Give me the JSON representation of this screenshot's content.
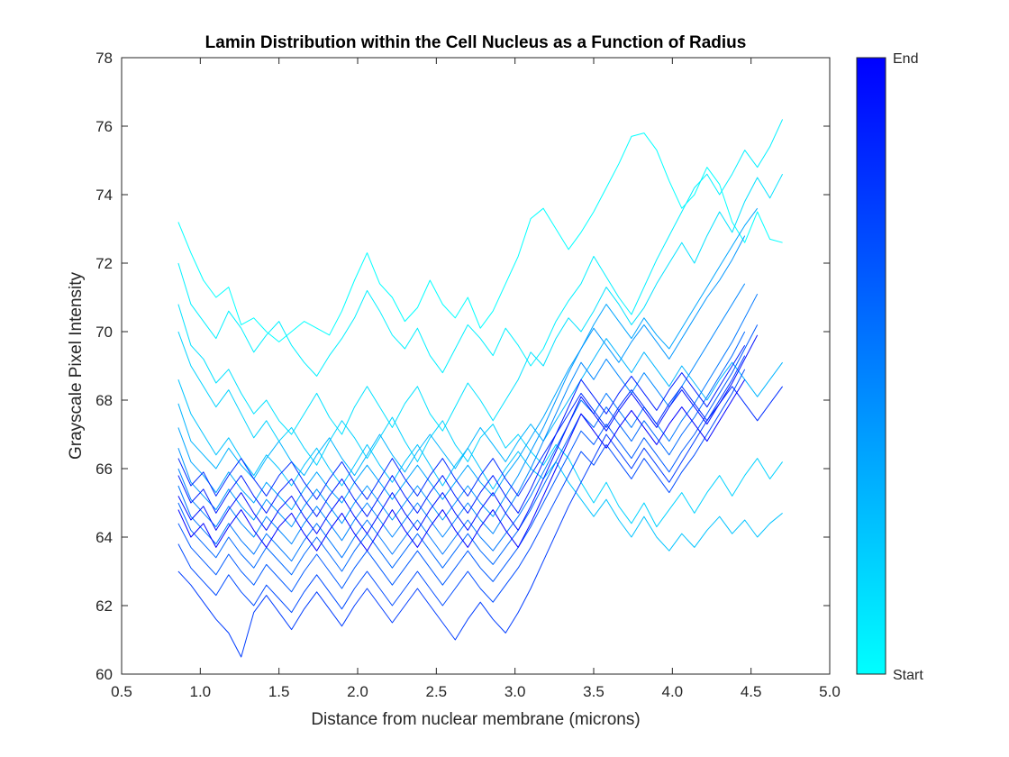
{
  "chart_data": {
    "type": "line",
    "title": "Lamin Distribution within the Cell Nucleus as a Function of Radius",
    "xlabel": "Distance from nuclear membrane (microns)",
    "ylabel": "Grayscale Pixel Intensity",
    "xlim": [
      0.5,
      5.0
    ],
    "ylim": [
      60,
      78
    ],
    "xticks": [
      "0.5",
      "1.0",
      "1.5",
      "2.0",
      "2.5",
      "3.0",
      "3.5",
      "4.0",
      "4.5",
      "5.0"
    ],
    "yticks": [
      "60",
      "62",
      "64",
      "66",
      "68",
      "70",
      "72",
      "74",
      "76",
      "78"
    ],
    "grid": false,
    "colorbar": {
      "start_label": "Start",
      "end_label": "End",
      "start_color": "#00FFFF",
      "end_color": "#0000FF"
    },
    "x": [
      0.86,
      0.94,
      1.02,
      1.1,
      1.18,
      1.26,
      1.34,
      1.42,
      1.5,
      1.58,
      1.66,
      1.74,
      1.82,
      1.9,
      1.98,
      2.06,
      2.14,
      2.22,
      2.3,
      2.38,
      2.46,
      2.54,
      2.62,
      2.7,
      2.78,
      2.86,
      2.94,
      3.02,
      3.1,
      3.18,
      3.26,
      3.34,
      3.42,
      3.5,
      3.58,
      3.66,
      3.74,
      3.82,
      3.9,
      3.98,
      4.06,
      4.14,
      4.22,
      4.3,
      4.38,
      4.46,
      4.54,
      4.62,
      4.7
    ],
    "series": [
      {
        "values": [
          73.2,
          72.3,
          71.5,
          71.0,
          71.3,
          70.2,
          70.4,
          70.0,
          69.7,
          70.0,
          70.3,
          70.1,
          69.9,
          70.6,
          71.5,
          72.3,
          71.4,
          71.0,
          70.3,
          70.7,
          71.5,
          70.8,
          70.4,
          71.0,
          70.1,
          70.6,
          71.4,
          72.2,
          73.3,
          73.6,
          73.0,
          72.4,
          72.9,
          73.5,
          74.2,
          74.9,
          75.7,
          75.8,
          75.3,
          74.4,
          73.6,
          74.0,
          74.8,
          74.3,
          73.2,
          72.6,
          73.5,
          72.7,
          72.6
        ]
      },
      {
        "values": [
          72.0,
          70.8,
          70.3,
          69.8,
          70.6,
          70.1,
          69.4,
          69.9,
          70.3,
          69.6,
          69.1,
          68.7,
          69.3,
          69.8,
          70.4,
          71.2,
          70.6,
          69.9,
          69.5,
          70.1,
          69.3,
          68.8,
          69.5,
          70.2,
          69.8,
          69.3,
          70.1,
          69.6,
          69.0,
          69.5,
          70.3,
          70.9,
          71.4,
          72.2,
          71.6,
          71.0,
          70.5,
          71.3,
          72.1,
          72.8,
          73.5,
          74.2,
          74.6,
          74.0,
          74.6,
          75.3,
          74.8,
          75.4,
          76.2
        ]
      },
      {
        "values": [
          70.8,
          69.6,
          69.2,
          68.5,
          68.9,
          68.2,
          67.6,
          68.0,
          67.4,
          67.0,
          67.6,
          68.2,
          67.5,
          67.0,
          67.8,
          68.4,
          67.8,
          67.2,
          67.9,
          68.4,
          67.6,
          67.1,
          67.8,
          68.5,
          68.0,
          67.4,
          68.0,
          68.6,
          69.4,
          69.0,
          69.8,
          70.4,
          70.0,
          70.6,
          71.3,
          70.8,
          70.2,
          70.7,
          71.4,
          72.0,
          72.6,
          72.0,
          72.8,
          73.5,
          72.9,
          73.8,
          74.5,
          73.9,
          74.6
        ]
      },
      {
        "values": [
          70.0,
          69.0,
          68.4,
          67.8,
          68.3,
          67.6,
          66.9,
          67.4,
          66.8,
          67.2,
          66.6,
          66.1,
          66.8,
          67.4,
          66.9,
          66.3,
          66.9,
          67.5,
          66.8,
          66.2,
          66.9,
          67.4,
          66.7,
          66.2,
          66.9,
          67.3,
          66.6,
          67.0,
          66.5,
          66.1,
          66.7,
          66.3,
          65.6,
          65.0,
          65.6,
          64.9,
          64.4,
          65.0,
          64.3,
          64.8,
          65.3,
          64.7,
          65.3,
          65.8,
          65.2,
          65.8,
          66.3,
          65.7,
          66.2
        ]
      },
      {
        "values": [
          68.6,
          67.6,
          67.0,
          66.4,
          66.9,
          66.3,
          65.8,
          66.4,
          66.0,
          65.5,
          66.1,
          66.6,
          66.0,
          65.5,
          66.1,
          66.7,
          66.1,
          65.6,
          66.2,
          66.7,
          66.1,
          65.5,
          66.1,
          66.6,
          66.0,
          65.4,
          66.0,
          66.5,
          66.0,
          65.7,
          66.2,
          65.6,
          65.1,
          64.6,
          65.1,
          64.5,
          64.0,
          64.6,
          64.0,
          63.6,
          64.1,
          63.7,
          64.2,
          64.6,
          64.1,
          64.5,
          64.0,
          64.4,
          64.7
        ]
      },
      {
        "values": [
          67.9,
          66.8,
          66.4,
          66.0,
          66.6,
          66.1,
          65.7,
          66.3,
          66.8,
          66.2,
          65.8,
          66.4,
          66.9,
          66.3,
          65.8,
          66.4,
          67.0,
          66.4,
          65.9,
          66.5,
          67.0,
          66.5,
          66.0,
          66.6,
          67.2,
          66.7,
          66.2,
          66.8,
          67.3,
          66.8,
          67.4,
          68.0,
          68.6,
          69.2,
          69.8,
          69.3,
          68.8,
          69.4,
          68.9,
          68.4,
          69.0,
          68.5,
          68.0,
          68.6,
          69.1,
          68.6,
          68.1,
          68.6,
          69.1
        ]
      },
      {
        "values": [
          67.2,
          66.2,
          65.8,
          65.3,
          65.9,
          65.4,
          65.0,
          65.6,
          65.2,
          64.8,
          65.4,
          65.9,
          65.4,
          65.0,
          65.6,
          66.1,
          65.6,
          65.1,
          65.6,
          66.1,
          65.6,
          65.1,
          65.6,
          66.1,
          65.6,
          65.2,
          65.8,
          66.3,
          66.9,
          67.5,
          68.2,
          68.9,
          69.5,
          70.2,
          70.8,
          70.3,
          69.8,
          70.4,
          69.9,
          69.5,
          70.1,
          70.7,
          71.3,
          71.9,
          72.5,
          73.1,
          73.6,
          null,
          null
        ]
      },
      {
        "values": [
          66.6,
          65.6,
          65.2,
          64.8,
          65.4,
          64.9,
          64.5,
          65.1,
          64.7,
          64.3,
          64.9,
          65.4,
          64.9,
          64.4,
          65.0,
          65.5,
          65.0,
          64.5,
          65.0,
          65.5,
          65.0,
          64.5,
          65.0,
          65.5,
          65.0,
          64.6,
          65.2,
          65.8,
          66.5,
          67.2,
          68.0,
          68.8,
          69.5,
          70.1,
          69.6,
          69.1,
          69.7,
          70.2,
          69.7,
          69.2,
          69.8,
          70.4,
          71.0,
          71.5,
          72.1,
          72.8,
          null,
          null,
          null
        ]
      },
      {
        "values": [
          66.0,
          65.1,
          64.7,
          64.3,
          64.9,
          64.4,
          64.0,
          64.6,
          64.2,
          63.8,
          64.4,
          64.9,
          64.4,
          63.9,
          64.5,
          65.0,
          64.5,
          64.0,
          64.5,
          65.0,
          64.5,
          64.0,
          64.5,
          65.0,
          64.5,
          64.1,
          64.7,
          65.3,
          66.0,
          66.8,
          67.6,
          68.4,
          69.1,
          68.6,
          69.2,
          68.7,
          68.2,
          68.8,
          68.3,
          67.8,
          68.4,
          69.0,
          69.6,
          70.2,
          70.8,
          71.4,
          null,
          null,
          null
        ]
      },
      {
        "values": [
          65.5,
          64.6,
          64.2,
          63.8,
          64.4,
          63.9,
          63.5,
          64.1,
          63.7,
          63.3,
          63.9,
          64.4,
          63.9,
          63.4,
          64.0,
          64.5,
          64.0,
          63.5,
          64.0,
          64.5,
          64.0,
          63.5,
          64.0,
          64.5,
          64.0,
          63.6,
          64.1,
          64.6,
          65.2,
          65.9,
          66.6,
          67.3,
          68.0,
          67.6,
          68.2,
          67.7,
          67.2,
          67.8,
          67.3,
          66.8,
          67.4,
          67.9,
          68.5,
          69.1,
          69.7,
          70.4,
          71.1,
          null,
          null
        ]
      },
      {
        "values": [
          65.0,
          64.2,
          63.8,
          63.4,
          64.0,
          63.5,
          63.1,
          63.7,
          63.3,
          62.9,
          63.5,
          64.0,
          63.5,
          63.0,
          63.6,
          64.1,
          63.6,
          63.1,
          63.6,
          64.1,
          63.6,
          63.1,
          63.6,
          64.1,
          63.6,
          63.2,
          63.7,
          64.2,
          64.8,
          65.5,
          66.2,
          66.9,
          67.6,
          67.2,
          67.8,
          67.3,
          66.8,
          67.4,
          66.9,
          66.4,
          67.0,
          67.5,
          68.1,
          68.7,
          69.3,
          70.0,
          null,
          null,
          null
        ]
      },
      {
        "values": [
          64.4,
          63.7,
          63.3,
          62.9,
          63.5,
          63.0,
          62.6,
          63.2,
          62.8,
          62.4,
          63.0,
          63.5,
          63.0,
          62.5,
          63.1,
          63.6,
          63.1,
          62.6,
          63.1,
          63.6,
          63.1,
          62.6,
          63.1,
          63.6,
          63.1,
          62.7,
          63.2,
          63.7,
          64.3,
          65.0,
          65.7,
          66.4,
          67.1,
          66.7,
          67.3,
          66.8,
          66.3,
          66.9,
          66.4,
          65.9,
          66.5,
          67.0,
          67.6,
          68.2,
          68.8,
          69.5,
          70.2,
          null,
          null
        ]
      },
      {
        "values": [
          63.8,
          63.1,
          62.7,
          62.3,
          62.9,
          62.4,
          62.0,
          62.6,
          62.2,
          61.8,
          62.4,
          62.9,
          62.4,
          61.9,
          62.5,
          63.0,
          62.5,
          62.0,
          62.5,
          63.0,
          62.5,
          62.0,
          62.5,
          63.0,
          62.5,
          62.1,
          62.6,
          63.1,
          63.7,
          64.4,
          65.1,
          65.8,
          66.5,
          66.1,
          66.7,
          66.2,
          65.7,
          66.3,
          65.8,
          65.3,
          65.9,
          66.4,
          67.0,
          67.6,
          68.2,
          68.9,
          null,
          null,
          null
        ]
      },
      {
        "values": [
          63.0,
          62.6,
          62.1,
          61.6,
          61.2,
          60.5,
          61.8,
          62.3,
          61.8,
          61.3,
          61.9,
          62.4,
          61.9,
          61.4,
          62.0,
          62.5,
          62.0,
          61.5,
          62.0,
          62.5,
          62.0,
          61.5,
          61.0,
          61.6,
          62.1,
          61.6,
          61.2,
          61.8,
          62.5,
          63.3,
          64.1,
          64.9,
          65.6,
          66.3,
          67.0,
          66.5,
          66.0,
          66.6,
          66.1,
          65.6,
          66.2,
          66.8,
          67.4,
          68.0,
          68.6,
          69.3,
          null,
          null,
          null
        ]
      },
      {
        "values": [
          66.3,
          65.5,
          65.9,
          65.2,
          65.8,
          66.3,
          65.7,
          65.2,
          65.8,
          66.2,
          65.6,
          65.1,
          65.7,
          66.2,
          65.6,
          65.1,
          65.7,
          66.3,
          65.7,
          65.2,
          65.8,
          66.3,
          65.7,
          65.2,
          65.8,
          66.3,
          65.7,
          65.2,
          65.8,
          66.4,
          67.0,
          67.6,
          68.2,
          67.7,
          67.2,
          67.8,
          68.3,
          67.8,
          67.3,
          67.9,
          68.4,
          67.9,
          67.4,
          67.9,
          68.4,
          67.9,
          67.4,
          67.9,
          68.4
        ]
      },
      {
        "values": [
          65.8,
          65.0,
          65.4,
          64.7,
          65.3,
          65.8,
          65.2,
          64.7,
          65.3,
          65.7,
          65.1,
          64.6,
          65.2,
          65.7,
          65.1,
          64.6,
          65.2,
          65.8,
          65.2,
          64.7,
          65.3,
          65.8,
          65.2,
          64.7,
          65.3,
          65.8,
          65.2,
          64.7,
          65.4,
          66.2,
          67.0,
          67.8,
          68.6,
          68.1,
          67.6,
          68.2,
          68.7,
          68.2,
          67.7,
          68.3,
          68.8,
          68.3,
          67.8,
          68.4,
          69.0,
          69.6,
          null,
          null,
          null
        ]
      },
      {
        "values": [
          65.2,
          64.5,
          64.9,
          64.2,
          64.8,
          65.3,
          64.7,
          64.2,
          64.8,
          65.2,
          64.6,
          64.1,
          64.7,
          65.2,
          64.6,
          64.1,
          64.7,
          65.3,
          64.7,
          64.2,
          64.8,
          65.3,
          64.7,
          64.2,
          64.8,
          65.3,
          64.7,
          64.2,
          64.9,
          65.7,
          66.5,
          67.3,
          68.1,
          67.6,
          67.1,
          67.7,
          68.2,
          67.7,
          67.2,
          67.8,
          68.3,
          67.8,
          67.3,
          67.9,
          68.5,
          69.2,
          69.9,
          null,
          null
        ]
      },
      {
        "values": [
          64.8,
          64.0,
          64.4,
          63.7,
          64.3,
          64.8,
          64.2,
          63.7,
          64.3,
          64.7,
          64.1,
          63.6,
          64.2,
          64.7,
          64.1,
          63.6,
          64.2,
          64.8,
          64.2,
          63.7,
          64.3,
          64.8,
          64.2,
          63.7,
          64.3,
          64.8,
          64.2,
          63.7,
          64.4,
          65.2,
          66.0,
          66.8,
          67.6,
          67.1,
          66.6,
          67.2,
          67.7,
          67.2,
          66.7,
          67.3,
          67.8,
          67.3,
          66.8,
          67.4,
          68.0,
          68.6,
          null,
          null,
          null
        ]
      }
    ]
  }
}
